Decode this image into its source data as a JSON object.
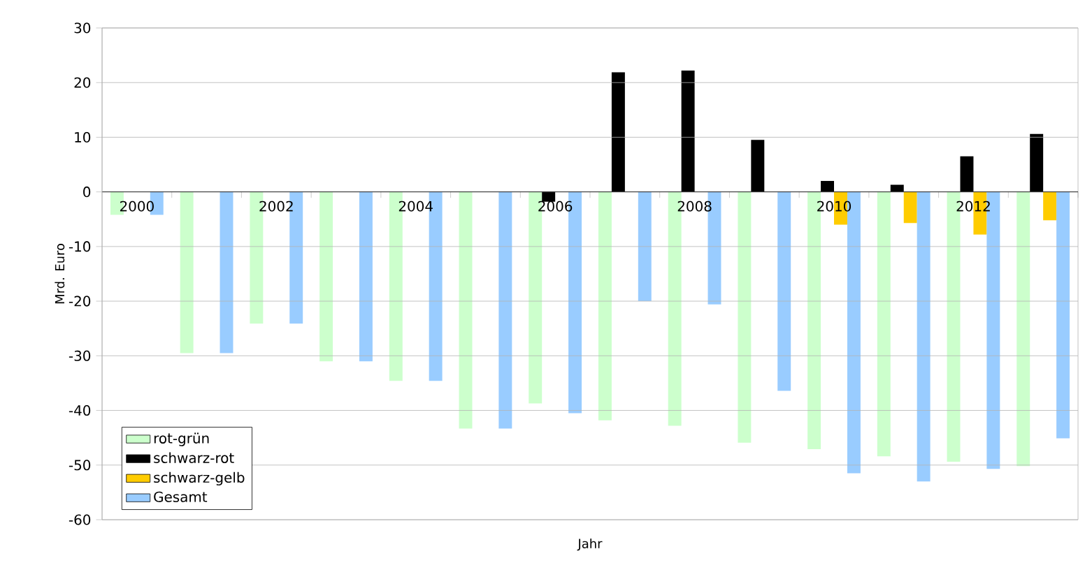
{
  "chart_data": {
    "type": "bar",
    "xlabel": "Jahr",
    "ylabel": "Mrd. Euro",
    "categories": [
      "2000",
      null,
      "2002",
      null,
      "2004",
      null,
      "2006",
      null,
      "2008",
      null,
      "2010",
      null,
      "2012",
      null
    ],
    "series": [
      {
        "name": "rot-grün",
        "color": "#ccffcc",
        "values": [
          -4.2,
          -29.5,
          -24.1,
          -31.0,
          -34.6,
          -43.3,
          -38.7,
          -41.8,
          -42.8,
          -45.9,
          -47.1,
          -48.4,
          -49.4,
          -50.2
        ]
      },
      {
        "name": "schwarz-rot",
        "color": "#000000",
        "values": [
          null,
          null,
          null,
          null,
          null,
          null,
          -1.8,
          21.9,
          22.2,
          9.5,
          2.0,
          1.3,
          6.5,
          10.6
        ]
      },
      {
        "name": "schwarz-gelb",
        "color": "#ffcc00",
        "values": [
          null,
          null,
          null,
          null,
          null,
          null,
          null,
          null,
          null,
          null,
          -6.0,
          -5.7,
          -7.8,
          -5.2
        ]
      },
      {
        "name": "Gesamt",
        "color": "#99ccff",
        "values": [
          -4.2,
          -29.5,
          -24.1,
          -31.0,
          -34.6,
          -43.3,
          -40.5,
          -20.0,
          -20.6,
          -36.4,
          -51.5,
          -53.0,
          -50.7,
          -45.1
        ]
      }
    ],
    "ylim": [
      -60,
      30
    ],
    "yticks": [
      -60,
      -50,
      -40,
      -30,
      -20,
      -10,
      0,
      10,
      20,
      30
    ],
    "grid": "y",
    "legend": "bottom left"
  }
}
